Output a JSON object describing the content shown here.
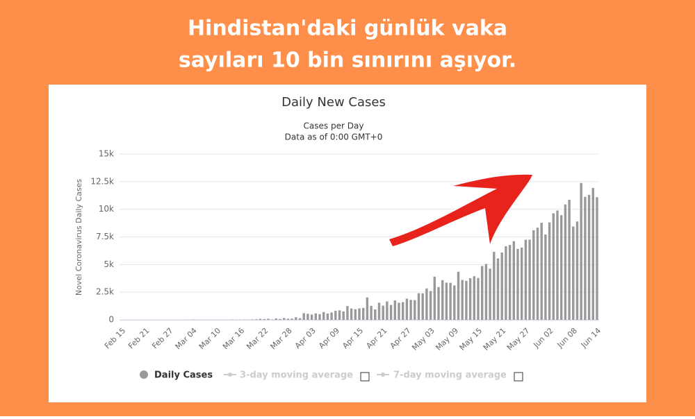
{
  "header": {
    "lines": [
      "Hindistan'daki günlük vaka",
      "sayıları 10 bin sınırını aşıyor."
    ]
  },
  "chart_data": {
    "type": "bar",
    "title": "Daily New Cases",
    "subtitle": [
      "Cases per Day",
      "Data as of 0:00 GMT+0"
    ],
    "y_label": "Novel Coronavirus Daily Cases",
    "categories": [
      "Feb 15",
      null,
      null,
      null,
      null,
      null,
      "Feb 21",
      null,
      null,
      null,
      null,
      null,
      "Feb 27",
      null,
      null,
      null,
      null,
      null,
      "Mar 04",
      null,
      null,
      null,
      null,
      null,
      "Mar 10",
      null,
      null,
      null,
      null,
      null,
      "Mar 16",
      null,
      null,
      null,
      null,
      null,
      "Mar 22",
      null,
      null,
      null,
      null,
      null,
      "Mar 28",
      null,
      null,
      null,
      null,
      null,
      "Apr 03",
      null,
      null,
      null,
      null,
      null,
      "Apr 09",
      null,
      null,
      null,
      null,
      null,
      "Apr 15",
      null,
      null,
      null,
      null,
      null,
      "Apr 21",
      null,
      null,
      null,
      null,
      null,
      "Apr 27",
      null,
      null,
      null,
      null,
      null,
      "May 03",
      null,
      null,
      null,
      null,
      null,
      "May 09",
      null,
      null,
      null,
      null,
      null,
      "May 15",
      null,
      null,
      null,
      null,
      null,
      "May 21",
      null,
      null,
      null,
      null,
      null,
      "May 27",
      null,
      null,
      null,
      null,
      null,
      "Jun 02",
      null,
      null,
      null,
      null,
      null,
      "Jun 08",
      null,
      null,
      null,
      null,
      null,
      "Jun 14"
    ],
    "series": [
      {
        "name": "Daily Cases",
        "color": "#999999",
        "values": [
          0,
          0,
          0,
          0,
          0,
          0,
          0,
          0,
          0,
          0,
          0,
          0,
          0,
          0,
          0,
          0,
          2,
          1,
          22,
          2,
          1,
          3,
          5,
          4,
          6,
          12,
          11,
          7,
          18,
          13,
          11,
          23,
          14,
          38,
          50,
          86,
          66,
          103,
          37,
          121,
          70,
          160,
          100,
          107,
          227,
          146,
          601,
          545,
          478,
          578,
          512,
          703,
          565,
          660,
          809,
          855,
          759,
          1247,
          1024,
          956,
          1031,
          1076,
          2022,
          1265,
          942,
          1543,
          1284,
          1662,
          1343,
          1751,
          1539,
          1599,
          1910,
          1801,
          1781,
          2407,
          2393,
          2841,
          2600,
          3900,
          2963,
          3587,
          3364,
          3344,
          3113,
          4353,
          3607,
          3524,
          3763,
          3942,
          3787,
          4864,
          5050,
          4630,
          6147,
          5553,
          6088,
          6654,
          6767,
          7113,
          6414,
          6535,
          7246,
          7254,
          8105,
          8336,
          8782,
          7723,
          8812,
          9633,
          9889,
          9471,
          10438,
          10864,
          8442,
          8895,
          12375,
          11128,
          11306,
          11929,
          11087
        ]
      }
    ],
    "other_legend_entries": [
      "3-day moving average",
      "7-day moving average"
    ],
    "ylim": [
      0,
      15000
    ],
    "yticks": [
      0,
      {
        "value": 2500,
        "label": "2.5k"
      },
      {
        "value": 5000,
        "label": "5k"
      },
      {
        "value": 7500,
        "label": "7.5k"
      },
      {
        "value": 10000,
        "label": "10k"
      },
      {
        "value": 12500,
        "label": "12.5k"
      },
      {
        "value": 15000,
        "label": "15k"
      }
    ],
    "grid": true
  }
}
